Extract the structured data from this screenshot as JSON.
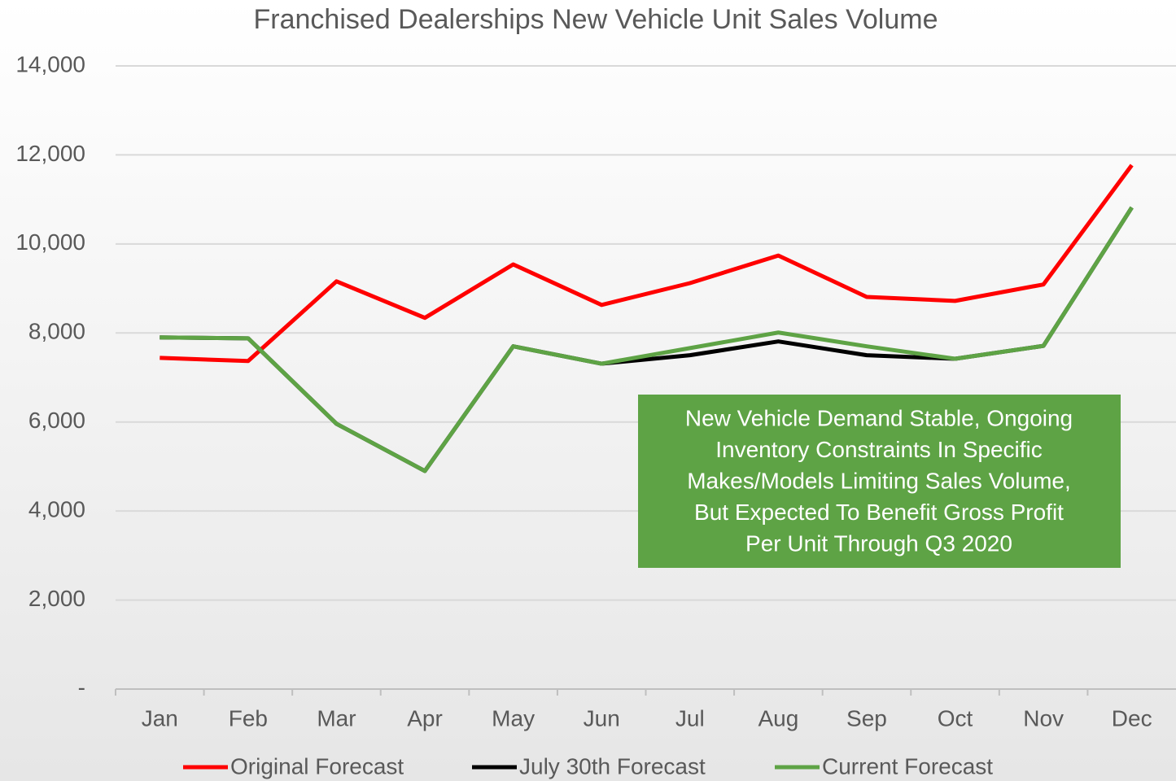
{
  "chart_data": {
    "type": "line",
    "title": "Franchised Dealerships New Vehicle Unit Sales Volume",
    "categories": [
      "Jan",
      "Feb",
      "Mar",
      "Apr",
      "May",
      "Jun",
      "Jul",
      "Aug",
      "Sep",
      "Oct",
      "Nov",
      "Dec"
    ],
    "series": [
      {
        "name": "Original Forecast",
        "color": "#ff0000",
        "values": [
          7440,
          7370,
          9160,
          8340,
          9540,
          8630,
          9120,
          9740,
          8810,
          8720,
          9090,
          11770
        ]
      },
      {
        "name": "July 30th Forecast",
        "color": "#000000",
        "values": [
          7900,
          7880,
          5960,
          4900,
          7700,
          7310,
          7500,
          7810,
          7500,
          7420,
          7710,
          10820
        ]
      },
      {
        "name": "Current Forecast",
        "color": "#5ea345",
        "values": [
          7900,
          7880,
          5960,
          4900,
          7700,
          7310,
          7660,
          8010,
          7700,
          7420,
          7710,
          10820
        ]
      }
    ],
    "ylim": [
      0,
      14000
    ],
    "yticks": [
      {
        "value": 0,
        "label": "-"
      },
      {
        "value": 2000,
        "label": "2,000"
      },
      {
        "value": 4000,
        "label": "4,000"
      },
      {
        "value": 6000,
        "label": "6,000"
      },
      {
        "value": 8000,
        "label": "8,000"
      },
      {
        "value": 10000,
        "label": "10,000"
      },
      {
        "value": 12000,
        "label": "12,000"
      },
      {
        "value": 14000,
        "label": "14,000"
      }
    ],
    "grid": true,
    "legend": "bottom",
    "annotation": {
      "color": "#5ea345",
      "lines": [
        "New Vehicle Demand Stable, Ongoing",
        "Inventory Constraints In Specific",
        "Makes/Models Limiting Sales Volume,",
        "But Expected To Benefit Gross Profit",
        "Per Unit Through Q3 2020"
      ]
    }
  }
}
